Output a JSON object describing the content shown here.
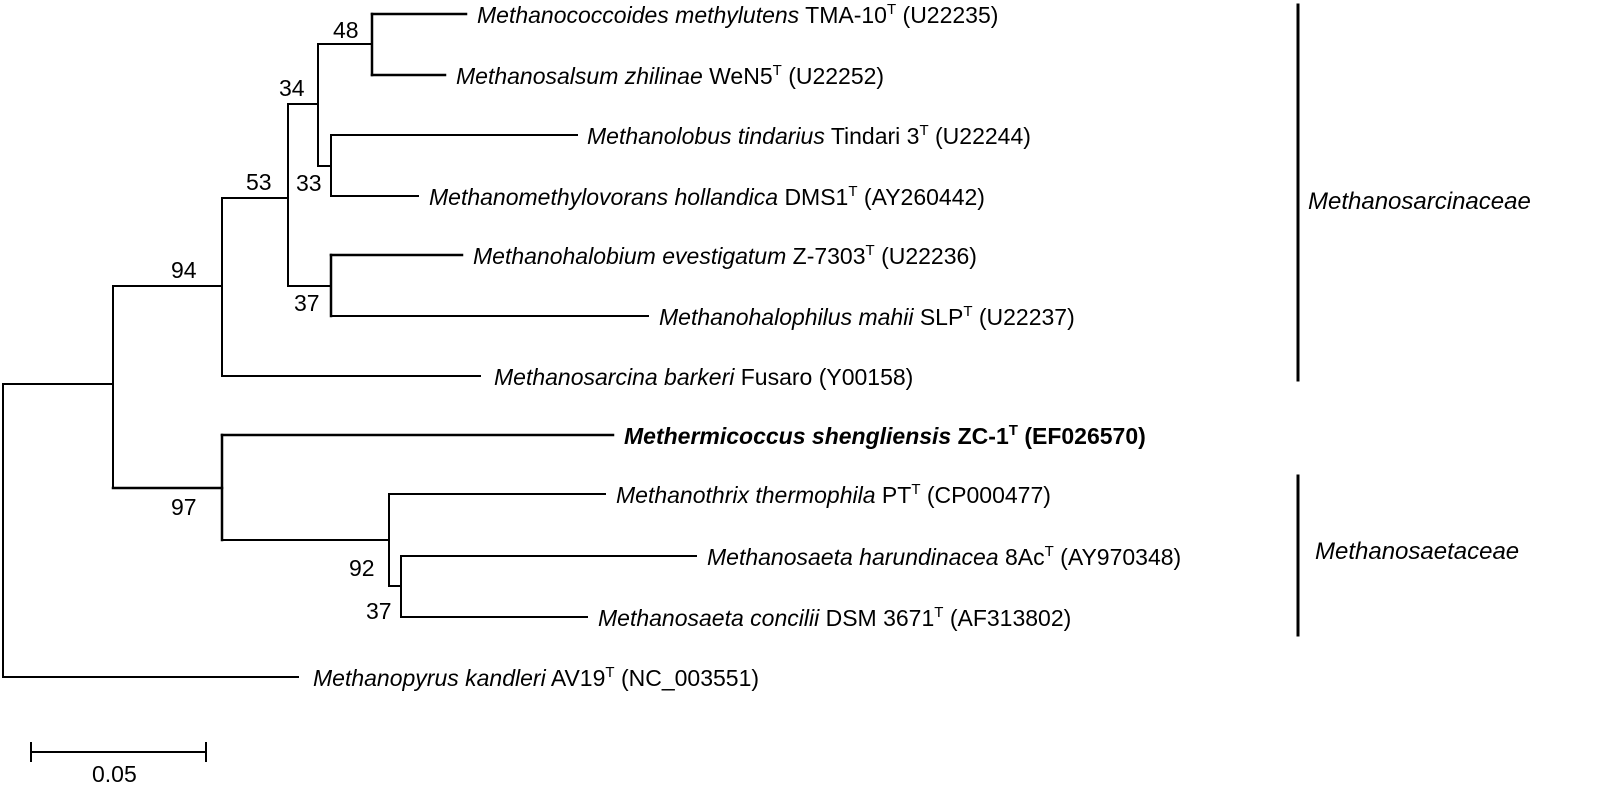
{
  "taxa": [
    {
      "id": "mcoccoides",
      "species": "Methanococcoides methylutens",
      "strain": "TMA-10",
      "type_strain": "T",
      "accession": "(U22235)",
      "bold": false
    },
    {
      "id": "msalsum",
      "species": "Methanosalsum zhilinae",
      "strain": "WeN5",
      "type_strain": "T",
      "accession": "(U22252)",
      "bold": false
    },
    {
      "id": "mlobus",
      "species": "Methanolobus tindarius",
      "strain": "Tindari 3",
      "type_strain": "T",
      "accession": "(U22244)",
      "bold": false
    },
    {
      "id": "mmethylovorans",
      "species": "Methanomethylovorans hollandica",
      "strain": "DMS1",
      "type_strain": "T",
      "accession": "(AY260442)",
      "bold": false
    },
    {
      "id": "mhalobium",
      "species": "Methanohalobium evestigatum",
      "strain": "Z-7303",
      "type_strain": "T",
      "accession": "(U22236)",
      "bold": false
    },
    {
      "id": "mhalophilus",
      "species": "Methanohalophilus mahii",
      "strain": "SLP",
      "type_strain": "T",
      "accession": "(U22237)",
      "bold": false
    },
    {
      "id": "msarcina",
      "species": "Methanosarcina barkeri",
      "strain": "Fusaro",
      "type_strain": "",
      "accession": "(Y00158)",
      "bold": false
    },
    {
      "id": "methermicoccus",
      "species": "Methermicoccus shengliensis",
      "strain": "ZC-1",
      "type_strain": "T",
      "accession": "(EF026570)",
      "bold": true
    },
    {
      "id": "mthrix",
      "species": "Methanothrix thermophila",
      "strain": "PT",
      "type_strain": "T",
      "accession": "(CP000477)",
      "bold": false
    },
    {
      "id": "msaeta-har",
      "species": "Methanosaeta harundinacea",
      "strain": "8Ac",
      "type_strain": "T",
      "accession": "(AY970348)",
      "bold": false
    },
    {
      "id": "msaeta-con",
      "species": "Methanosaeta concilii",
      "strain": "DSM 3671",
      "type_strain": "T",
      "accession": "(AF313802)",
      "bold": false
    },
    {
      "id": "mpyrus",
      "species": "Methanopyrus kandleri",
      "strain": "AV19",
      "type_strain": "T",
      "accession": "(NC_003551)",
      "bold": false
    }
  ],
  "bootstrap": {
    "n48": "48",
    "n34": "34",
    "n33": "33",
    "n53": "53",
    "n37a": "37",
    "n94": "94",
    "n97": "97",
    "n92": "92",
    "n37b": "37"
  },
  "families": {
    "sarcinaceae": "Methanosarcinaceae",
    "saetaceae": "Methanosaetaceae"
  },
  "scale_bar": {
    "label": "0.05"
  }
}
